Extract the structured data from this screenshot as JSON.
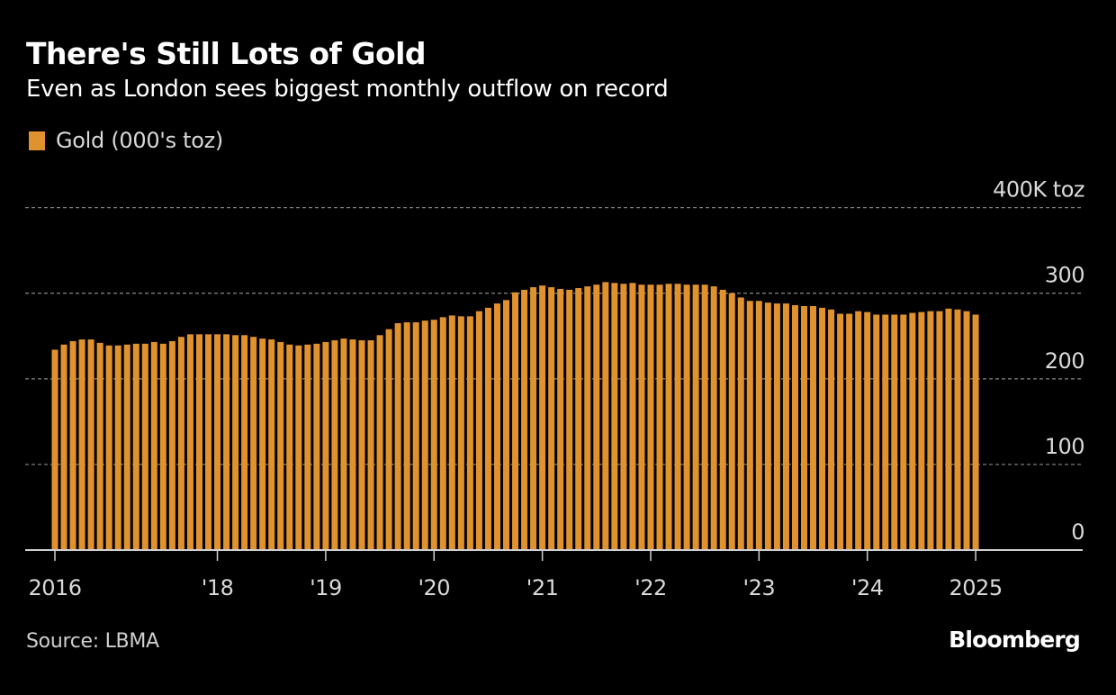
{
  "chart_data": {
    "type": "bar",
    "title": "There's Still Lots of Gold",
    "subtitle": "Even as London sees biggest monthly outflow on record",
    "legend": [
      {
        "name": "Gold (000's toz)",
        "color": "#E0922F"
      }
    ],
    "legend_position": "top-left",
    "xlabel": "",
    "ylabel": "",
    "ylim": [
      0,
      400
    ],
    "y_ticks": [
      {
        "value": 0,
        "label": "0"
      },
      {
        "value": 100,
        "label": "100"
      },
      {
        "value": 200,
        "label": "200"
      },
      {
        "value": 300,
        "label": "300"
      },
      {
        "value": 400,
        "label": "400K toz"
      }
    ],
    "y_axis_side": "right",
    "grid": true,
    "x_start": "2016-07",
    "x_end": "2025-01",
    "x_ticks": [
      {
        "index": 0,
        "label": "2016"
      },
      {
        "index": 18,
        "label": "'18"
      },
      {
        "index": 30,
        "label": "'19"
      },
      {
        "index": 42,
        "label": "'20"
      },
      {
        "index": 54,
        "label": "'21"
      },
      {
        "index": 66,
        "label": "'22"
      },
      {
        "index": 78,
        "label": "'23"
      },
      {
        "index": 90,
        "label": "'24"
      },
      {
        "index": 102,
        "label": "2025"
      }
    ],
    "axis_slots_after_last": 12,
    "series": [
      {
        "name": "Gold (000's toz)",
        "color": "#E0922F",
        "values": [
          234,
          240,
          244,
          246,
          246,
          242,
          239,
          239,
          240,
          241,
          241,
          243,
          241,
          244,
          249,
          252,
          252,
          252,
          252,
          252,
          251,
          251,
          249,
          247,
          246,
          243,
          240,
          239,
          240,
          241,
          243,
          245,
          247,
          246,
          245,
          245,
          251,
          258,
          265,
          266,
          266,
          268,
          269,
          272,
          274,
          273,
          273,
          279,
          283,
          288,
          292,
          301,
          304,
          307,
          309,
          307,
          305,
          304,
          306,
          308,
          310,
          313,
          312,
          311,
          312,
          310,
          310,
          310,
          311,
          311,
          310,
          310,
          310,
          308,
          304,
          300,
          295,
          291,
          291,
          289,
          288,
          288,
          286,
          285,
          285,
          283,
          281,
          276,
          276,
          279,
          278,
          275,
          275,
          275,
          275,
          277,
          278,
          279,
          279,
          282,
          281,
          279,
          275
        ]
      }
    ]
  },
  "footer": {
    "source": "Source: LBMA",
    "brand": "Bloomberg"
  }
}
